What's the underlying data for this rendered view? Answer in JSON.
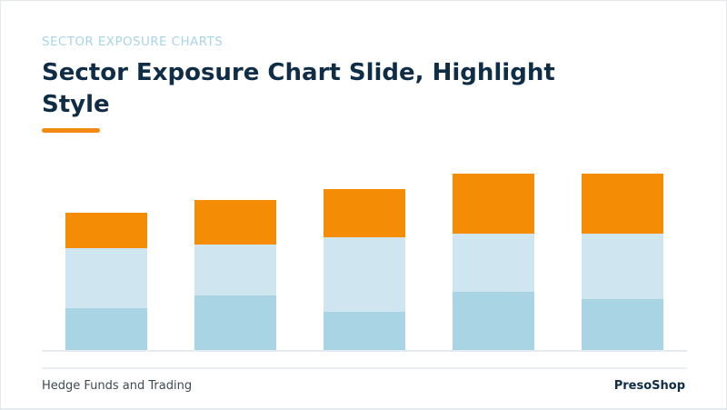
{
  "slide": {
    "eyebrow": "SECTOR EXPOSURE CHARTS",
    "title": "Sector Exposure Chart Slide, Highlight Style",
    "footer_left": "Hedge Funds and Trading",
    "footer_right": "PresoShop"
  },
  "colors": {
    "accent": "#f28a12",
    "title": "#0f2d47",
    "eyebrow": "#a9d4e4"
  },
  "chart_data": {
    "type": "bar",
    "stacked": true,
    "categories": [
      "",
      "",
      "",
      "",
      ""
    ],
    "series": [
      {
        "values": [
          47,
          61,
          43,
          65,
          57
        ],
        "color": "#a9d4e4"
      },
      {
        "values": [
          66,
          56,
          82,
          64,
          72
        ],
        "color": "#cfe5f0"
      },
      {
        "values": [
          39,
          49,
          53,
          66,
          66
        ],
        "color": "#f48c06"
      }
    ],
    "ylim": [
      0,
      196
    ],
    "grid": false,
    "legend": "none"
  }
}
